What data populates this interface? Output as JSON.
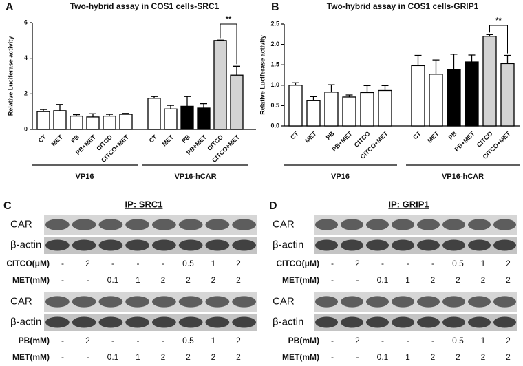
{
  "chart_data": [
    {
      "type": "bar",
      "panel_label": "A",
      "title": "Two-hybrid assay in COS1 cells-SRC1",
      "y_label": "Relative Luciferase activity",
      "ylim": [
        0,
        6
      ],
      "yticks": [
        0,
        2,
        4,
        6
      ],
      "groups": [
        {
          "name": "VP16",
          "categories": [
            "CT",
            "MET",
            "PB",
            "PB+MET",
            "CITCO",
            "CITCO+MET"
          ],
          "values": [
            1.0,
            1.05,
            0.75,
            0.7,
            0.75,
            0.85
          ],
          "errors": [
            0.12,
            0.35,
            0.08,
            0.18,
            0.1,
            0.05
          ],
          "colors": [
            "#ffffff",
            "#ffffff",
            "#ffffff",
            "#ffffff",
            "#ffffff",
            "#ffffff"
          ]
        },
        {
          "name": "VP16-hCAR",
          "categories": [
            "CT",
            "MET",
            "PB",
            "PB+MET",
            "CITCO",
            "CITCO+MET"
          ],
          "values": [
            1.75,
            1.15,
            1.3,
            1.2,
            5.0,
            3.05
          ],
          "errors": [
            0.1,
            0.2,
            0.55,
            0.25,
            0.02,
            0.5
          ],
          "colors": [
            "#ffffff",
            "#ffffff",
            "#000000",
            "#000000",
            "#d3d3d3",
            "#d3d3d3"
          ]
        }
      ],
      "annotations": [
        "**"
      ]
    },
    {
      "type": "bar",
      "panel_label": "B",
      "title": "Two-hybrid assay in COS1 cells-GRIP1",
      "y_label": "Relative Luciferase activity",
      "ylim": [
        0,
        2.5
      ],
      "yticks": [
        {
          "value": 0,
          "label": "0.0"
        },
        0.5,
        {
          "value": 1,
          "label": "1.0"
        },
        1.5,
        {
          "value": 2,
          "label": "2.0"
        },
        2.5
      ],
      "groups": [
        {
          "name": "VP16",
          "categories": [
            "CT",
            "MET",
            "PB",
            "PB+MET",
            "CITCO",
            "CITCO+MET"
          ],
          "values": [
            1.0,
            0.62,
            0.83,
            0.71,
            0.82,
            0.87
          ],
          "errors": [
            0.06,
            0.1,
            0.18,
            0.05,
            0.17,
            0.12
          ],
          "colors": [
            "#ffffff",
            "#ffffff",
            "#ffffff",
            "#ffffff",
            "#ffffff",
            "#ffffff"
          ]
        },
        {
          "name": "VP16-hCAR",
          "categories": [
            "CT",
            "MET",
            "PB",
            "PB+MET",
            "CITCO",
            "CITCO+MET"
          ],
          "values": [
            1.48,
            1.27,
            1.38,
            1.57,
            2.2,
            1.53
          ],
          "errors": [
            0.25,
            0.35,
            0.38,
            0.17,
            0.04,
            0.2
          ],
          "colors": [
            "#ffffff",
            "#ffffff",
            "#000000",
            "#000000",
            "#d3d3d3",
            "#d3d3d3"
          ]
        }
      ],
      "annotations": [
        "**"
      ]
    }
  ],
  "blots": [
    {
      "panel_label": "C",
      "title": "IP: SRC1",
      "blocks": [
        {
          "bands": [
            "CAR",
            "β-actin"
          ],
          "conditions": [
            {
              "name": "CITCO(μM)",
              "values": [
                "-",
                "2",
                "-",
                "-",
                "-",
                "0.5",
                "1",
                "2"
              ]
            },
            {
              "name": "MET(mM)",
              "values": [
                "-",
                "-",
                "0.1",
                "1",
                "2",
                "2",
                "2",
                "2"
              ]
            }
          ]
        },
        {
          "bands": [
            "CAR",
            "β-actin"
          ],
          "conditions": [
            {
              "name": "PB(mM)",
              "values": [
                "-",
                "2",
                "-",
                "-",
                "-",
                "0.5",
                "1",
                "2"
              ]
            },
            {
              "name": "MET(mM)",
              "values": [
                "-",
                "-",
                "0.1",
                "1",
                "2",
                "2",
                "2",
                "2"
              ]
            }
          ]
        }
      ]
    },
    {
      "panel_label": "D",
      "title": "IP: GRIP1",
      "blocks": [
        {
          "bands": [
            "CAR",
            "β-actin"
          ],
          "conditions": [
            {
              "name": "CITCO(μM)",
              "values": [
                "-",
                "2",
                "-",
                "-",
                "-",
                "0.5",
                "1",
                "2"
              ]
            },
            {
              "name": "MET(mM)",
              "values": [
                "-",
                "-",
                "0.1",
                "1",
                "2",
                "2",
                "2",
                "2"
              ]
            }
          ]
        },
        {
          "bands": [
            "CAR",
            "β-actin"
          ],
          "conditions": [
            {
              "name": "PB(mM)",
              "values": [
                "-",
                "2",
                "-",
                "-",
                "-",
                "0.5",
                "1",
                "2"
              ]
            },
            {
              "name": "MET(mM)",
              "values": [
                "-",
                "-",
                "0.1",
                "1",
                "2",
                "2",
                "2",
                "2"
              ]
            }
          ]
        }
      ]
    }
  ]
}
